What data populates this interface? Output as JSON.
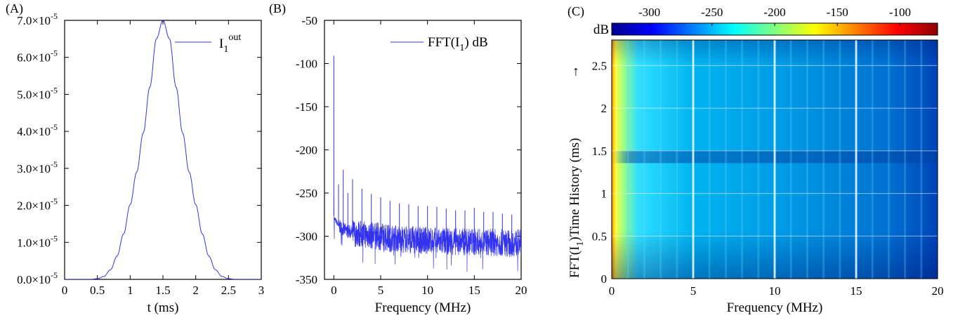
{
  "chart_data": [
    {
      "panel_label": "(A)",
      "type": "line",
      "xlabel": "t (ms)",
      "ylabel": "",
      "xlim": [
        0,
        3
      ],
      "ylim": [
        0,
        7e-05
      ],
      "x_ticks": [
        "0",
        "0.5",
        "1",
        "1.5",
        "2",
        "2.5",
        "3"
      ],
      "y_ticks": [
        {
          "m": "0.0",
          "e": "-5"
        },
        {
          "m": "1.0",
          "e": "-5"
        },
        {
          "m": "2.0",
          "e": "-5"
        },
        {
          "m": "3.0",
          "e": "-5"
        },
        {
          "m": "4.0",
          "e": "-5"
        },
        {
          "m": "5.0",
          "e": "-5"
        },
        {
          "m": "6.0",
          "e": "-5"
        },
        {
          "m": "7.0",
          "e": "-5"
        }
      ],
      "legend": {
        "base": "I",
        "sub": "1",
        "sup": "out",
        "position": "top-right"
      },
      "line_color": "#3333ee",
      "series": [
        {
          "x": [
            0,
            0.1,
            0.2,
            0.3,
            0.4,
            0.5,
            0.6,
            0.7,
            0.8,
            0.9,
            1.0,
            1.1,
            1.2,
            1.3,
            1.4,
            1.5,
            1.6,
            1.7,
            1.8,
            1.9,
            2.0,
            2.1,
            2.2,
            2.3,
            2.4,
            2.5,
            2.6,
            2.7,
            2.8,
            2.9,
            3.0
          ],
          "y": [
            0,
            0,
            0,
            0,
            0,
            2e-07,
            8e-07,
            2.6e-06,
            6.3e-06,
            1.23e-05,
            2.02e-05,
            2.9e-05,
            3.96e-05,
            5.2e-05,
            6.5e-05,
            7e-05,
            6.5e-05,
            5.2e-05,
            3.96e-05,
            2.9e-05,
            2.02e-05,
            1.23e-05,
            6.3e-06,
            2.6e-06,
            8e-07,
            2e-07,
            0,
            0,
            0,
            0,
            0
          ]
        }
      ]
    },
    {
      "panel_label": "(B)",
      "type": "line",
      "xlabel": "Frequency (MHz)",
      "ylabel": "",
      "xlim": [
        -1,
        20
      ],
      "ylim": [
        -350,
        -50
      ],
      "x_ticks": [
        0,
        5,
        10,
        15,
        20
      ],
      "y_ticks": [
        -50,
        -100,
        -150,
        -200,
        -250,
        -300,
        -350
      ],
      "legend": {
        "base": "FFT(I",
        "sub": "1",
        "after": ") dB",
        "position": "top-right"
      },
      "line_color": "#3333ee",
      "noise_floor": [
        [
          0.1,
          -280
        ],
        [
          0.5,
          -288
        ],
        [
          1,
          -292
        ],
        [
          2,
          -296
        ],
        [
          4,
          -299
        ],
        [
          6,
          -302
        ],
        [
          8,
          -304
        ],
        [
          12,
          -306
        ],
        [
          20,
          -308
        ]
      ],
      "peaks": [
        {
          "x": 0,
          "y": -91
        },
        {
          "x": 0.5,
          "y": -240
        },
        {
          "x": 1,
          "y": -223
        },
        {
          "x": 1.5,
          "y": -250
        },
        {
          "x": 2,
          "y": -234
        },
        {
          "x": 3,
          "y": -245
        },
        {
          "x": 4,
          "y": -251
        },
        {
          "x": 5,
          "y": -255
        },
        {
          "x": 6,
          "y": -259
        },
        {
          "x": 7,
          "y": -262
        },
        {
          "x": 8,
          "y": -263
        },
        {
          "x": 9,
          "y": -265
        },
        {
          "x": 10,
          "y": -265
        },
        {
          "x": 11,
          "y": -266
        },
        {
          "x": 12,
          "y": -268
        },
        {
          "x": 13,
          "y": -270
        },
        {
          "x": 14,
          "y": -270
        },
        {
          "x": 15,
          "y": -267
        },
        {
          "x": 16,
          "y": -272
        },
        {
          "x": 17,
          "y": -272
        },
        {
          "x": 18,
          "y": -274
        },
        {
          "x": 19,
          "y": -275
        }
      ]
    },
    {
      "panel_label": "(C)",
      "type": "heatmap",
      "xlabel": "Frequency (MHz)",
      "ylabel": {
        "before": "FFT(I",
        "sub": "1",
        "after": ")Time History (ms)"
      },
      "ylabel_arrow": "→",
      "xlim": [
        0,
        20
      ],
      "ylim": [
        0,
        2.8
      ],
      "x_ticks": [
        0,
        5,
        10,
        15,
        20
      ],
      "y_ticks": [
        "0",
        "0.5",
        "1",
        "1.5",
        "2",
        "2.5"
      ],
      "colorbar": {
        "label": "dB",
        "ticks": [
          "-300",
          "-250",
          "-200",
          "-150",
          "-100"
        ],
        "range": [
          -330,
          -70
        ],
        "colors": [
          "#00008b",
          "#0000ff",
          "#0080ff",
          "#00ffff",
          "#80ff80",
          "#ffff00",
          "#ff8000",
          "#ff0000",
          "#8b0000"
        ]
      },
      "bright_columns_MHz": [
        5,
        10,
        15
      ],
      "dark_band_ms": 1.43
    }
  ]
}
